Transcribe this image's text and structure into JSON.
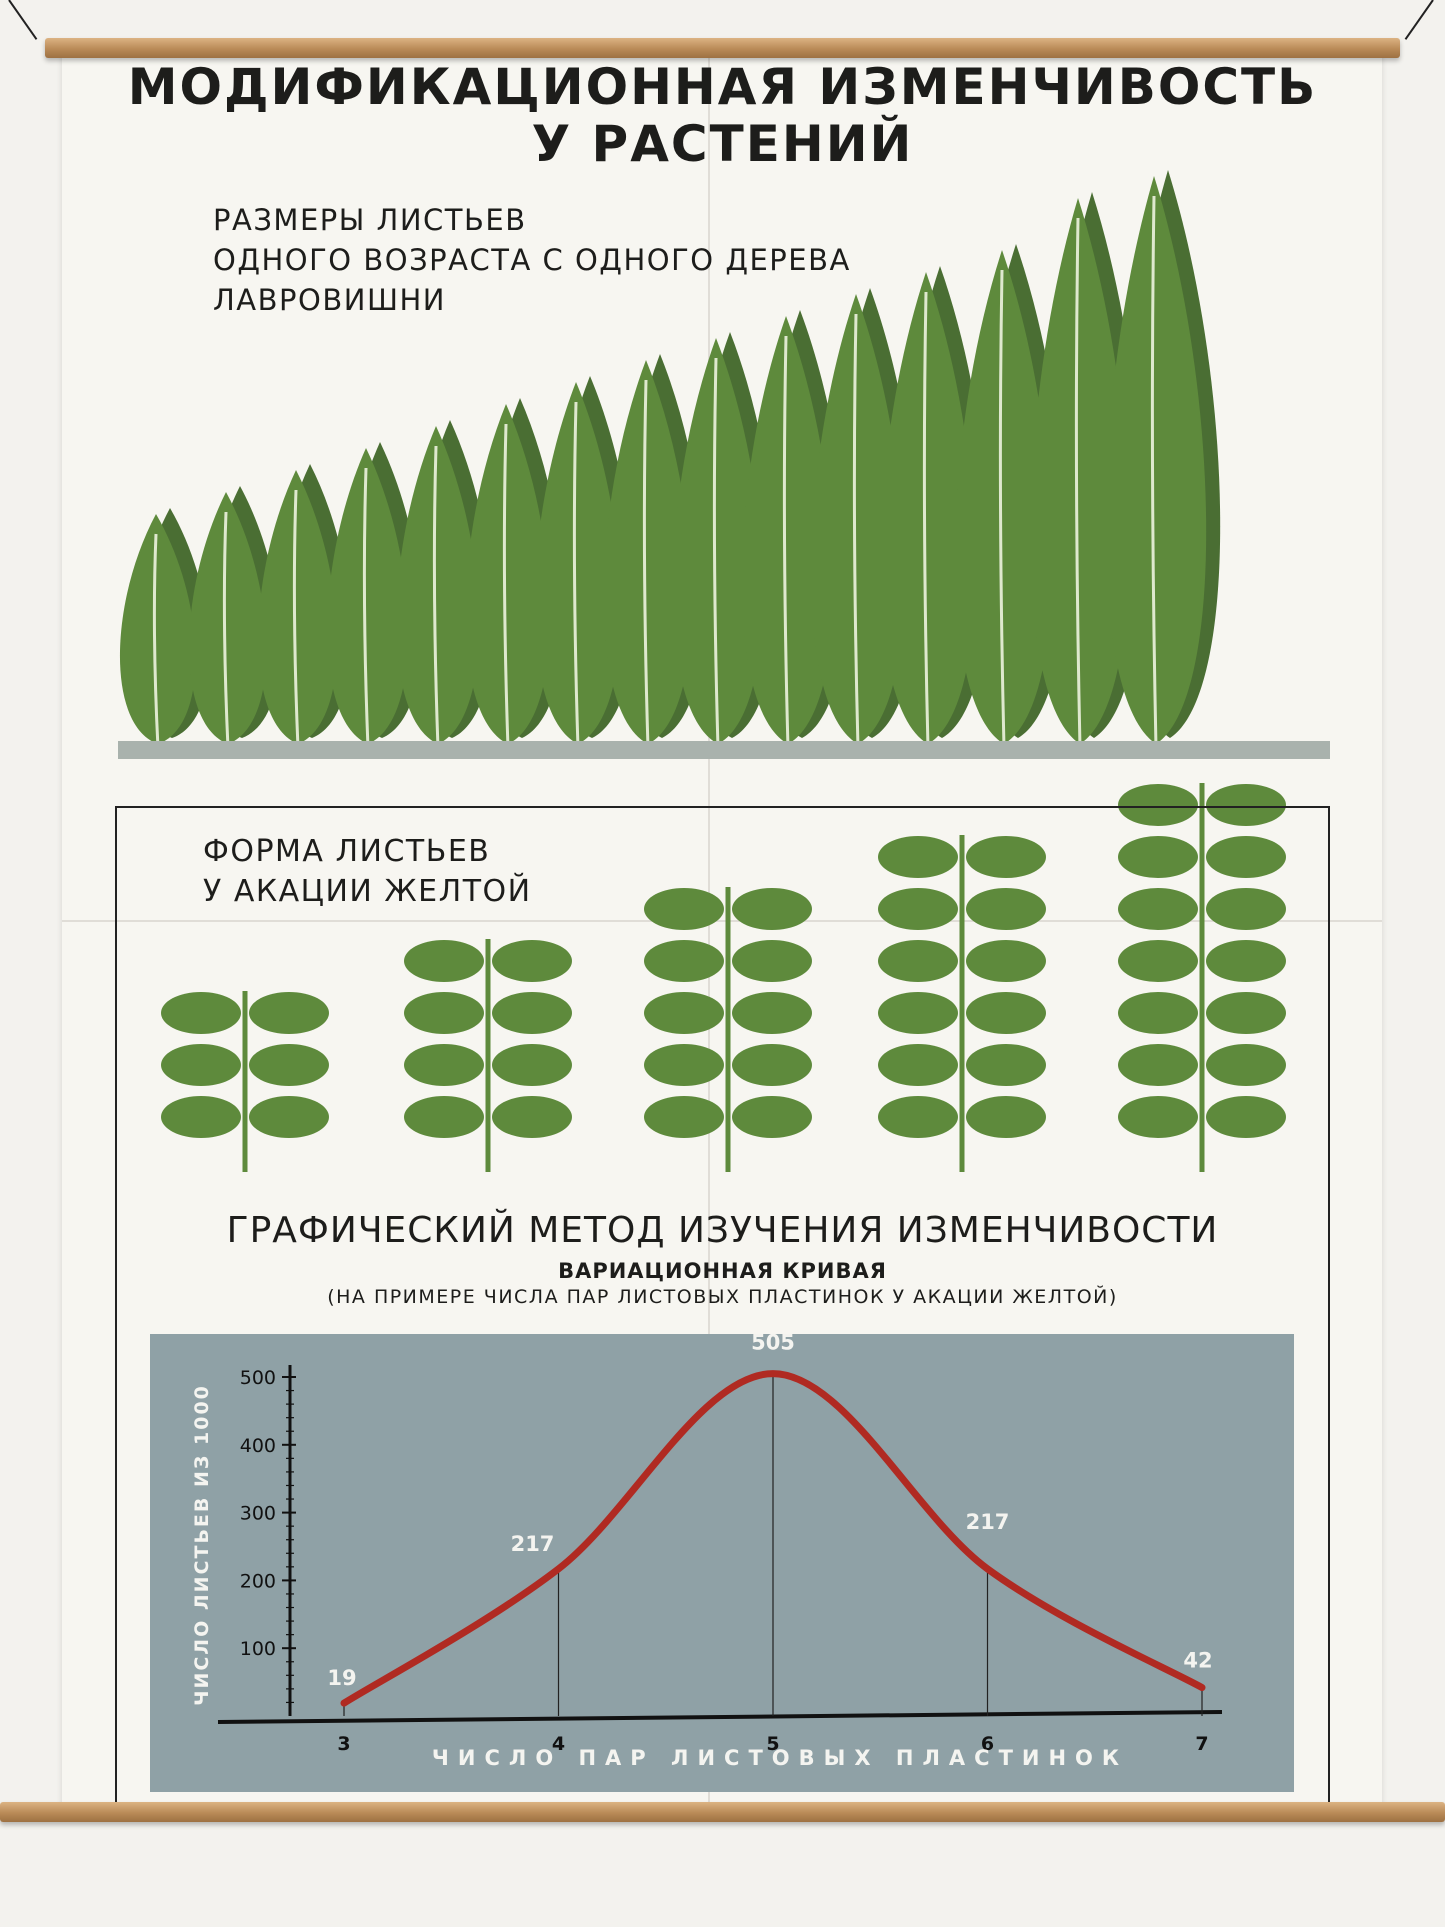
{
  "poster": {
    "title_line1": "МОДИФИКАЦИОННАЯ ИЗМЕНЧИВОСТЬ",
    "title_line2": "У РАСТЕНИЙ"
  },
  "laurel_section": {
    "label_lines": [
      "РАЗМЕРЫ ЛИСТЬЕВ",
      "ОДНОГО ВОЗРАСТА С ОДНОГО ДЕРЕВА",
      "ЛАВРОВИШНИ"
    ],
    "leaf_count": 15
  },
  "acacia_section": {
    "label_lines": [
      "ФОРМА ЛИСТЬЕВ",
      "У АКАЦИИ ЖЕЛТОЙ"
    ],
    "leaflet_pairs": [
      3,
      4,
      5,
      6,
      7
    ]
  },
  "graph_section": {
    "title": "ГРАФИЧЕСКИЙ МЕТОД ИЗУЧЕНИЯ ИЗМЕНЧИВОСТИ",
    "subtitle": "ВАРИАЦИОННАЯ КРИВАЯ",
    "note": "(НА ПРИМЕРЕ ЧИСЛА ПАР ЛИСТОВЫХ ПЛАСТИНОК У АКАЦИИ ЖЕЛТОЙ)"
  },
  "chart_data": {
    "type": "line",
    "x": [
      3,
      4,
      5,
      6,
      7
    ],
    "values": [
      19,
      217,
      505,
      217,
      42
    ],
    "data_labels": [
      "19",
      "217",
      "505",
      "217",
      "42"
    ],
    "xlabel": "ЧИСЛО ПАР ЛИСТОВЫХ ПЛАСТИНОК",
    "ylabel": "ЧИСЛО ЛИСТЬЕВ ИЗ 1000",
    "yticks": [
      100,
      200,
      300,
      400,
      500
    ],
    "xticks": [
      3,
      4,
      5,
      6,
      7
    ],
    "ylim": [
      0,
      500
    ],
    "xlim": [
      3,
      7
    ],
    "grid": false
  },
  "colors": {
    "leaf": "#5e8a3c",
    "leaf_shadow": "#4a6e33",
    "curve": "#b02a22",
    "chart_background": "#8fa1a6",
    "ink": "#1d1d1b"
  }
}
